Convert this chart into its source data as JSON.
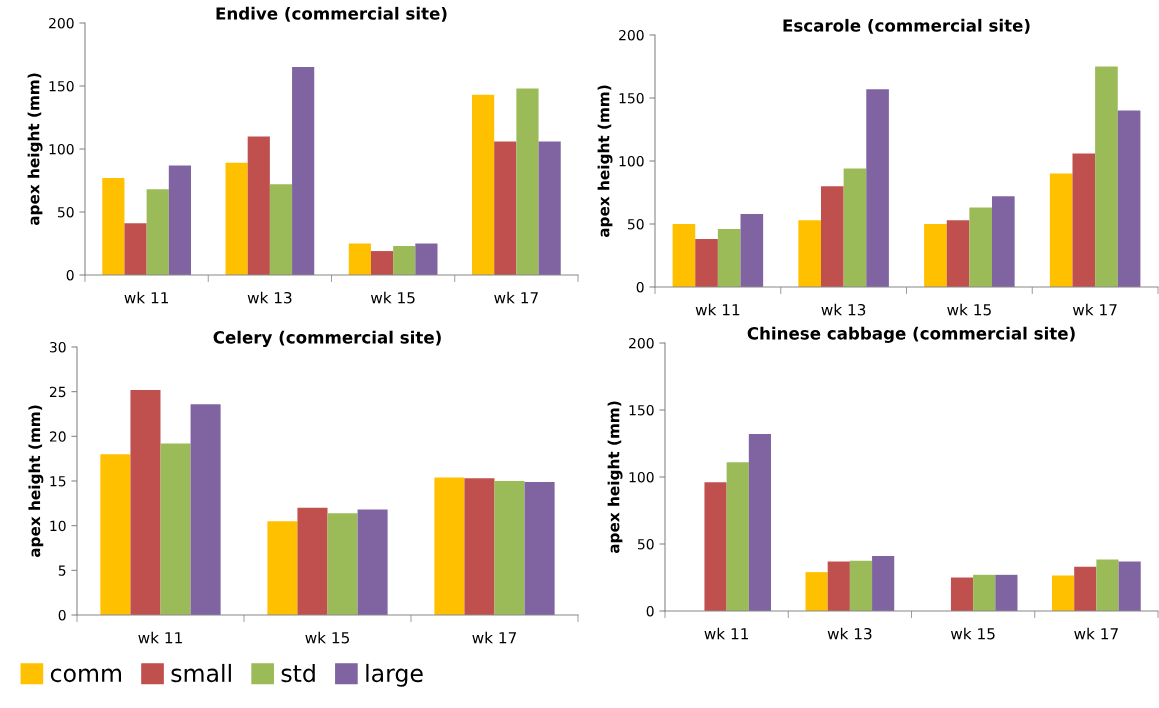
{
  "chart_data": [
    {
      "type": "bar",
      "title": "Endive (commercial site)",
      "ylabel": "apex height (mm)",
      "categories": [
        "wk 11",
        "wk 13",
        "wk 15",
        "wk 17"
      ],
      "ylim": [
        0,
        200
      ],
      "yticks": [
        0,
        50,
        100,
        150,
        200
      ],
      "grid": false,
      "legend": false,
      "series": [
        {
          "color": "#ffc000",
          "values": [
            77,
            89,
            25,
            143
          ]
        },
        {
          "color": "#c0504d",
          "values": [
            41,
            110,
            19,
            106
          ]
        },
        {
          "color": "#9bbb59",
          "values": [
            68,
            72,
            23,
            148
          ]
        },
        {
          "color": "#8064a2",
          "values": [
            87,
            165,
            25,
            106
          ]
        }
      ]
    },
    {
      "type": "bar",
      "title": "Escarole (commercial site)",
      "ylabel": "apex height (mm)",
      "categories": [
        "wk 11",
        "wk 13",
        "wk 15",
        "wk 17"
      ],
      "ylim": [
        0,
        200
      ],
      "yticks": [
        0,
        50,
        100,
        150,
        200
      ],
      "grid": false,
      "legend": false,
      "series": [
        {
          "color": "#ffc000",
          "values": [
            50,
            53,
            50,
            90
          ]
        },
        {
          "color": "#c0504d",
          "values": [
            38,
            80,
            53,
            106
          ]
        },
        {
          "color": "#9bbb59",
          "values": [
            46,
            94,
            63,
            175
          ]
        },
        {
          "color": "#8064a2",
          "values": [
            58,
            157,
            72,
            140
          ]
        }
      ]
    },
    {
      "type": "bar",
      "title": "Celery (commercial site)",
      "ylabel": "apex height (mm)",
      "categories": [
        "wk 11",
        "wk 15",
        "wk 17"
      ],
      "ylim": [
        0,
        30
      ],
      "yticks": [
        0,
        5,
        10,
        15,
        20,
        25,
        30
      ],
      "grid": false,
      "legend": "bottom left",
      "series": [
        {
          "name": "comm",
          "color": "#ffc000",
          "values": [
            18,
            10.5,
            15.4
          ]
        },
        {
          "name": "small",
          "color": "#c0504d",
          "values": [
            25.2,
            12,
            15.3
          ]
        },
        {
          "name": "std",
          "color": "#9bbb59",
          "values": [
            19.2,
            11.4,
            15.0
          ]
        },
        {
          "name": "large",
          "color": "#8064a2",
          "values": [
            23.6,
            11.8,
            14.9
          ]
        }
      ]
    },
    {
      "type": "bar",
      "title": "Chinese cabbage (commercial site)",
      "ylabel": "apex height (mm)",
      "categories": [
        "wk 11",
        "wk 13",
        "wk 15",
        "wk 17"
      ],
      "ylim": [
        0,
        200
      ],
      "yticks": [
        0,
        50,
        100,
        150,
        200
      ],
      "grid": false,
      "legend": false,
      "series": [
        {
          "color": "#ffc000",
          "values": [
            null,
            29,
            null,
            26.5
          ]
        },
        {
          "color": "#c0504d",
          "values": [
            96,
            37,
            25,
            33
          ]
        },
        {
          "color": "#9bbb59",
          "values": [
            111,
            37.5,
            27,
            38.5
          ]
        },
        {
          "color": "#8064a2",
          "values": [
            132,
            41,
            27,
            37
          ]
        }
      ]
    }
  ]
}
